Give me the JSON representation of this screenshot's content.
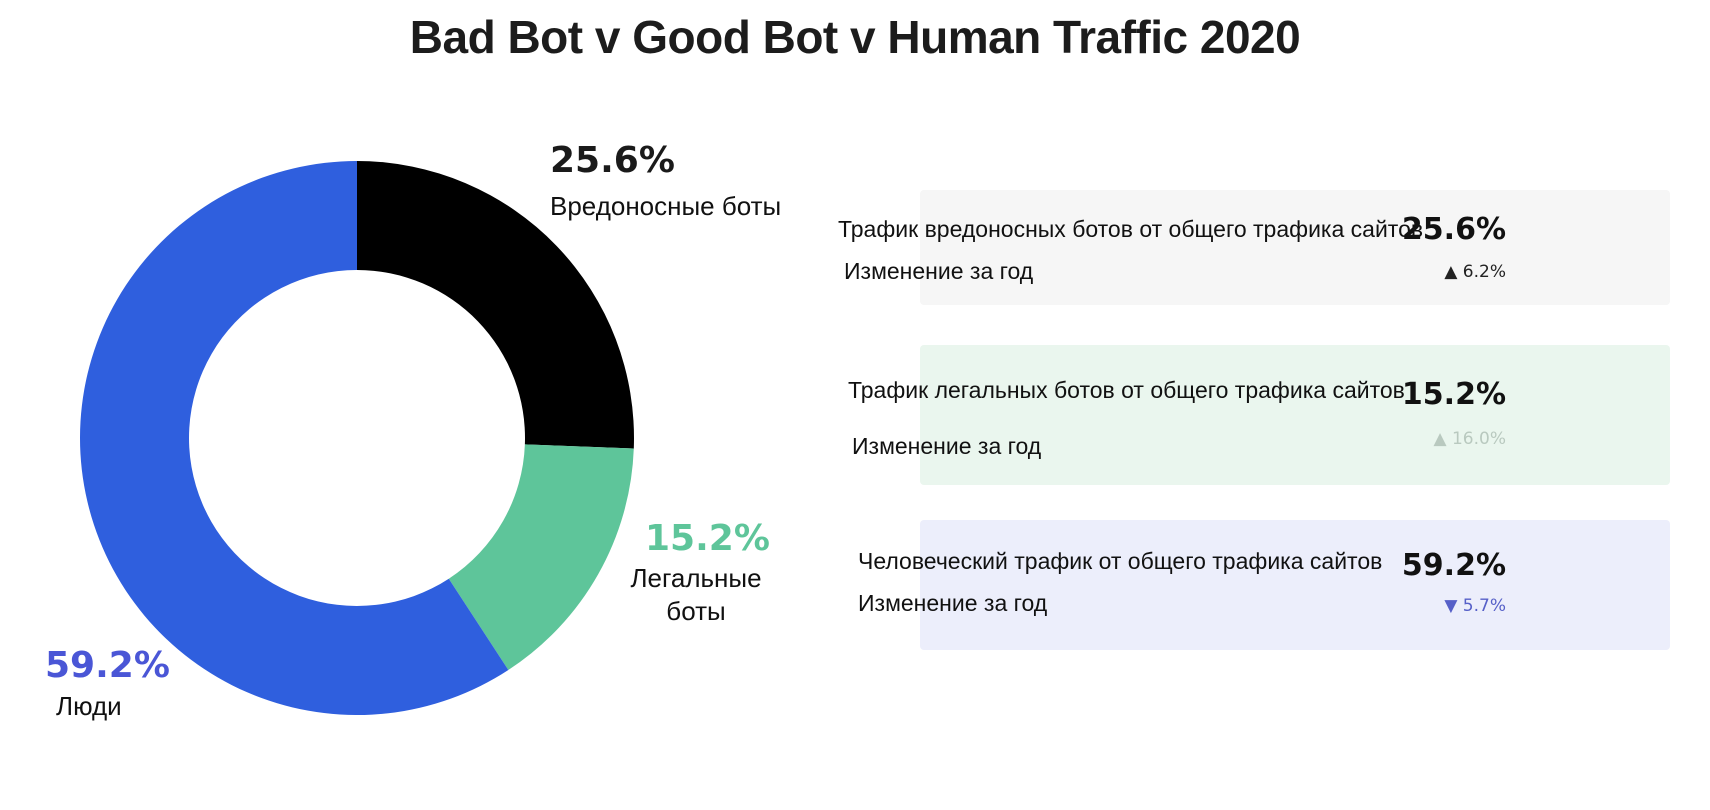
{
  "chart_data": {
    "type": "pie",
    "style": "donut",
    "title": "Bad Bot v Good Bot v Human Traffic 2020",
    "slices": [
      {
        "label": "Вредоносные боты",
        "value": 25.6,
        "display": "25.6%",
        "color": "#000000"
      },
      {
        "label": "Легальные боты",
        "value": 15.2,
        "display": "15.2%",
        "color": "#5ec59a"
      },
      {
        "label": "Люди",
        "value": 59.2,
        "display": "59.2%",
        "color": "#2f5fde"
      }
    ]
  },
  "label_colors": {
    "bad": "#1a1a1a",
    "good": "#5ec59a",
    "human": "#4a56d6"
  },
  "legal_bots_label_lines": [
    "Легальные",
    "боты"
  ],
  "cards": [
    {
      "title": "Трафик вредоносных ботов от общего трафика сайтов",
      "value": "25.6%",
      "change_label": "Изменение за год",
      "change": "▲ 6.2%",
      "background": "#f6f6f6",
      "change_color": "#222222"
    },
    {
      "title": "Трафик легальных ботов от общего трафика сайтов",
      "value": "15.2%",
      "change_label": "Изменение за год",
      "change": "▲ 16.0%",
      "background": "#eaf6ee",
      "change_color": "#b9c9bf"
    },
    {
      "title": "Человеческий трафик от общего трафика сайтов",
      "value": "59.2%",
      "change_label": "Изменение за год",
      "change": "▼ 5.7%",
      "background": "#eceefb",
      "change_color": "#5660c8"
    }
  ]
}
